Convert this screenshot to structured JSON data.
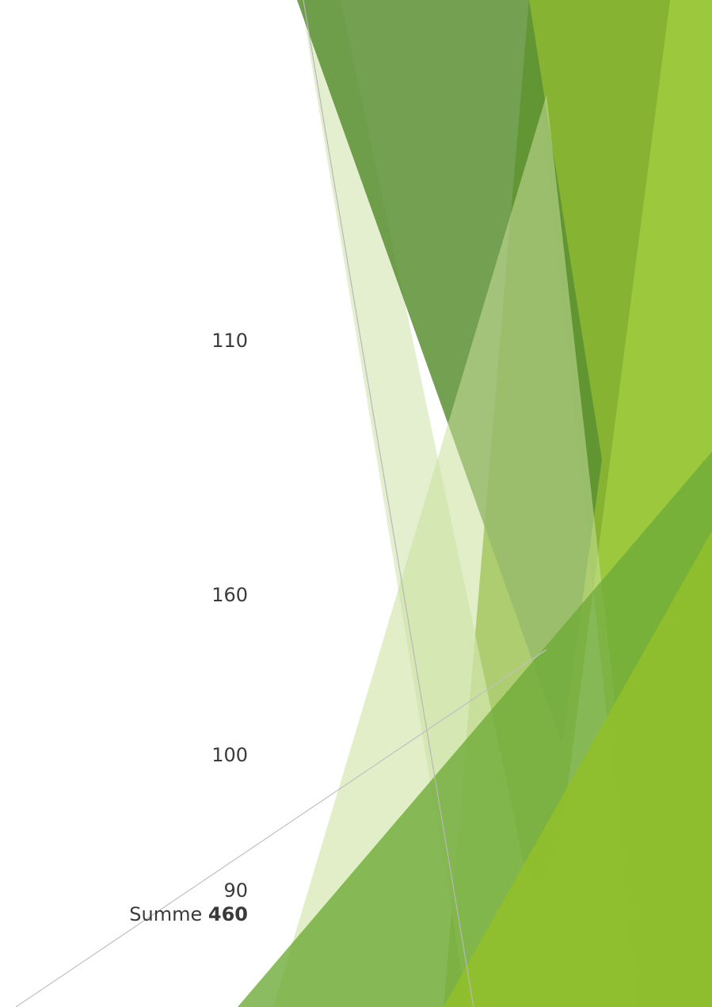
{
  "values": [
    "110",
    "160",
    "100",
    "90"
  ],
  "sum": {
    "label": "Summe",
    "value": "460"
  },
  "colors": {
    "dark_green": "#4d7f2f",
    "mid_green": "#6a9a3a",
    "olive_green": "#8ab43a",
    "light_green": "#9bc83c",
    "pale_green": "#dbe9bf",
    "bright_green": "#8fbf2c",
    "line_gray": "#c0c0c0"
  }
}
